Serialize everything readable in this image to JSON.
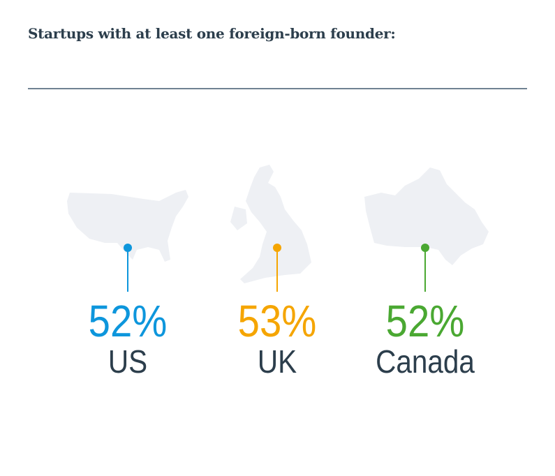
{
  "title": "Startups with at least one foreign-born founder:",
  "chart_data": {
    "type": "infographic",
    "title": "Startups with at least one foreign-born founder:",
    "categories": [
      "US",
      "UK",
      "Canada"
    ],
    "values": [
      52,
      53,
      52
    ],
    "unit": "%",
    "items": [
      {
        "label": "US",
        "value_text": "52%",
        "color": "#0d96dc",
        "map_icon": "us-map-icon"
      },
      {
        "label": "UK",
        "value_text": "53%",
        "color": "#f5a500",
        "map_icon": "uk-map-icon"
      },
      {
        "label": "Canada",
        "value_text": "52%",
        "color": "#4aa832",
        "map_icon": "canada-map-icon"
      }
    ]
  },
  "colors": {
    "text": "#2c3e4c",
    "map": "#eef0f4",
    "rule": "#6f8292"
  }
}
